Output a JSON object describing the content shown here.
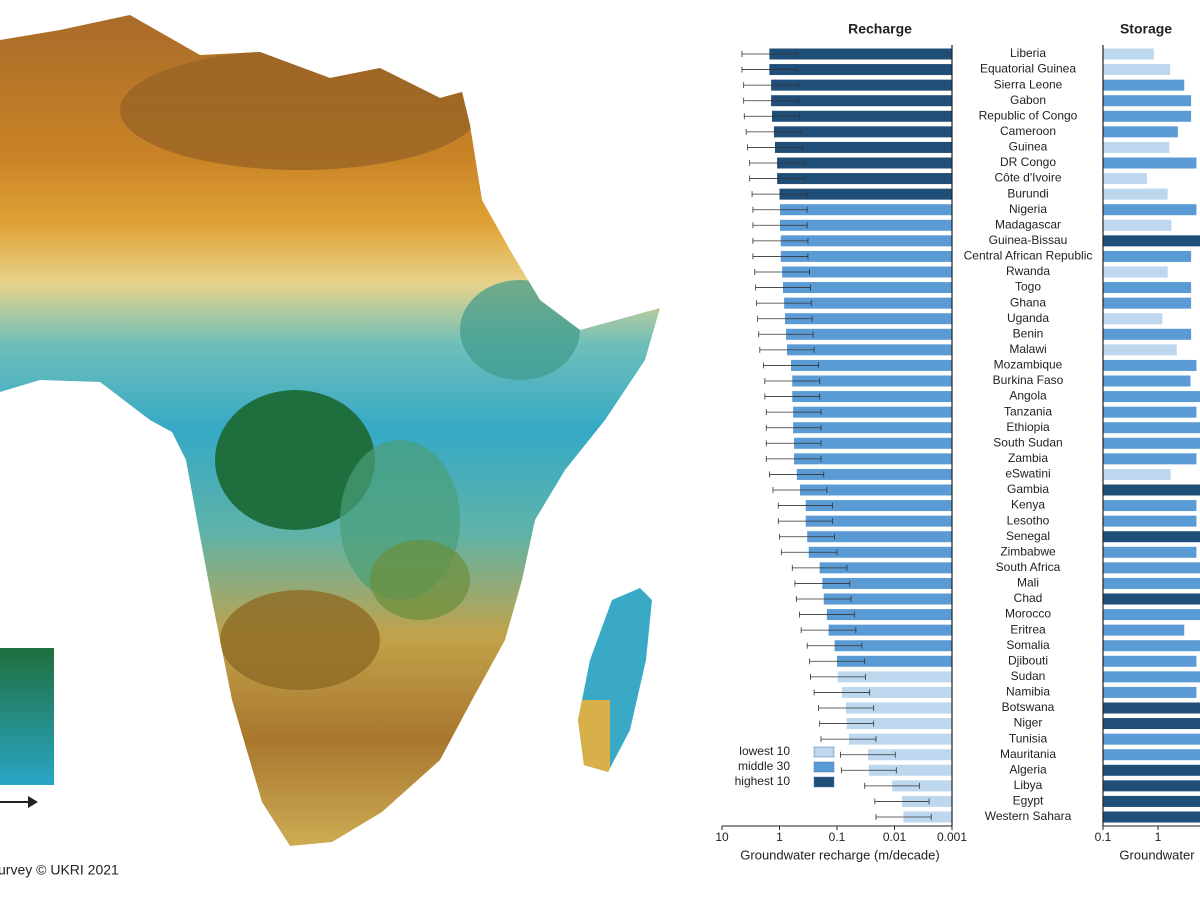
{
  "map": {
    "credit": "urvey © UKRI 2021"
  },
  "chart_data": [
    {
      "type": "hbar",
      "title": "Recharge",
      "x_label": "Groundwater recharge (m/decade)",
      "xscale": "log",
      "xlim": [
        10,
        0.001
      ],
      "xticks": [
        10,
        1,
        0.1,
        0.01,
        0.001
      ],
      "categories": [
        "Liberia",
        "Equatorial Guinea",
        "Sierra Leone",
        "Gabon",
        "Republic of Congo",
        "Cameroon",
        "Guinea",
        "DR Congo",
        "Côte d'Ivoire",
        "Burundi",
        "Nigeria",
        "Madagascar",
        "Guinea-Bissau",
        "Central African Republic",
        "Rwanda",
        "Togo",
        "Ghana",
        "Uganda",
        "Benin",
        "Malawi",
        "Mozambique",
        "Burkina Faso",
        "Angola",
        "Tanzania",
        "Ethiopia",
        "South Sudan",
        "Zambia",
        "eSwatini",
        "Gambia",
        "Kenya",
        "Lesotho",
        "Senegal",
        "Zimbabwe",
        "South Africa",
        "Mali",
        "Chad",
        "Morocco",
        "Eritrea",
        "Somalia",
        "Djibouti",
        "Sudan",
        "Namibia",
        "Botswana",
        "Niger",
        "Tunisia",
        "Mauritania",
        "Algeria",
        "Libya",
        "Egypt",
        "Western Sahara"
      ],
      "values": [
        1.5,
        1.5,
        1.4,
        1.4,
        1.35,
        1.25,
        1.2,
        1.1,
        1.1,
        1.0,
        0.98,
        0.98,
        0.95,
        0.95,
        0.9,
        0.87,
        0.83,
        0.8,
        0.77,
        0.74,
        0.63,
        0.6,
        0.6,
        0.58,
        0.58,
        0.56,
        0.56,
        0.5,
        0.44,
        0.35,
        0.35,
        0.33,
        0.31,
        0.2,
        0.18,
        0.17,
        0.15,
        0.14,
        0.11,
        0.1,
        0.097,
        0.082,
        0.07,
        0.068,
        0.062,
        0.029,
        0.028,
        0.011,
        0.0074,
        0.007
      ],
      "error_max": [
        4.5,
        4.5,
        4.2,
        4.2,
        4.1,
        3.8,
        3.6,
        3.3,
        3.3,
        3,
        2.9,
        2.9,
        2.9,
        2.9,
        2.7,
        2.6,
        2.5,
        2.4,
        2.3,
        2.2,
        1.9,
        1.8,
        1.8,
        1.7,
        1.7,
        1.7,
        1.7,
        1.5,
        1.3,
        1.05,
        1.05,
        1.0,
        0.93,
        0.6,
        0.54,
        0.51,
        0.45,
        0.42,
        0.33,
        0.3,
        0.29,
        0.25,
        0.21,
        0.2,
        0.19,
        0.087,
        0.084,
        0.033,
        0.022,
        0.021
      ],
      "error_min": [
        0.5,
        0.5,
        0.47,
        0.47,
        0.45,
        0.42,
        0.4,
        0.37,
        0.37,
        0.33,
        0.33,
        0.33,
        0.32,
        0.32,
        0.3,
        0.29,
        0.28,
        0.27,
        0.26,
        0.25,
        0.21,
        0.2,
        0.2,
        0.19,
        0.19,
        0.19,
        0.19,
        0.17,
        0.15,
        0.12,
        0.12,
        0.11,
        0.1,
        0.067,
        0.06,
        0.057,
        0.05,
        0.047,
        0.037,
        0.033,
        0.032,
        0.027,
        0.023,
        0.023,
        0.021,
        0.0097,
        0.0093,
        0.0037,
        0.0025,
        0.0023
      ],
      "colors": [
        "#1f4e79",
        "#1f4e79",
        "#1f4e79",
        "#1f4e79",
        "#1f4e79",
        "#1f4e79",
        "#1f4e79",
        "#1f4e79",
        "#1f4e79",
        "#1f4e79",
        "#5b9bd5",
        "#5b9bd5",
        "#5b9bd5",
        "#5b9bd5",
        "#5b9bd5",
        "#5b9bd5",
        "#5b9bd5",
        "#5b9bd5",
        "#5b9bd5",
        "#5b9bd5",
        "#5b9bd5",
        "#5b9bd5",
        "#5b9bd5",
        "#5b9bd5",
        "#5b9bd5",
        "#5b9bd5",
        "#5b9bd5",
        "#5b9bd5",
        "#5b9bd5",
        "#5b9bd5",
        "#5b9bd5",
        "#5b9bd5",
        "#5b9bd5",
        "#5b9bd5",
        "#5b9bd5",
        "#5b9bd5",
        "#5b9bd5",
        "#5b9bd5",
        "#5b9bd5",
        "#5b9bd5",
        "#bdd7ee",
        "#bdd7ee",
        "#bdd7ee",
        "#bdd7ee",
        "#bdd7ee",
        "#bdd7ee",
        "#bdd7ee",
        "#bdd7ee",
        "#bdd7ee",
        "#bdd7ee"
      ],
      "legend_location": "lower left",
      "legend": [
        {
          "name": "lowest 10",
          "color": "#bdd7ee"
        },
        {
          "name": "middle 30",
          "color": "#5b9bd5"
        },
        {
          "name": "highest 10",
          "color": "#1f4e79"
        }
      ]
    },
    {
      "type": "hbar",
      "title": "Storage",
      "x_label": "Groundwater",
      "xscale": "log",
      "xlim": [
        0.1,
        10
      ],
      "xticks": [
        0.1,
        1
      ],
      "values": [
        0.84,
        1.66,
        3,
        4,
        4,
        2.3,
        1.6,
        5,
        0.63,
        1.5,
        5,
        1.75,
        8,
        4,
        1.5,
        4,
        4,
        1.2,
        4,
        2.2,
        5,
        3.9,
        6,
        5,
        6,
        6,
        5,
        1.7,
        8,
        5,
        5,
        8,
        5,
        6,
        7,
        8,
        6,
        3.0,
        6,
        5,
        7,
        5,
        8,
        9,
        8,
        9,
        10,
        10,
        10,
        10
      ],
      "colors": [
        "#bdd7ee",
        "#bdd7ee",
        "#5b9bd5",
        "#5b9bd5",
        "#5b9bd5",
        "#5b9bd5",
        "#bdd7ee",
        "#5b9bd5",
        "#bdd7ee",
        "#bdd7ee",
        "#5b9bd5",
        "#bdd7ee",
        "#1f4e79",
        "#5b9bd5",
        "#bdd7ee",
        "#5b9bd5",
        "#5b9bd5",
        "#bdd7ee",
        "#5b9bd5",
        "#bdd7ee",
        "#5b9bd5",
        "#5b9bd5",
        "#5b9bd5",
        "#5b9bd5",
        "#5b9bd5",
        "#5b9bd5",
        "#5b9bd5",
        "#bdd7ee",
        "#1f4e79",
        "#5b9bd5",
        "#5b9bd5",
        "#1f4e79",
        "#5b9bd5",
        "#5b9bd5",
        "#5b9bd5",
        "#1f4e79",
        "#5b9bd5",
        "#5b9bd5",
        "#5b9bd5",
        "#5b9bd5",
        "#5b9bd5",
        "#5b9bd5",
        "#1f4e79",
        "#1f4e79",
        "#5b9bd5",
        "#5b9bd5",
        "#1f4e79",
        "#1f4e79",
        "#1f4e79",
        "#1f4e79"
      ]
    }
  ]
}
